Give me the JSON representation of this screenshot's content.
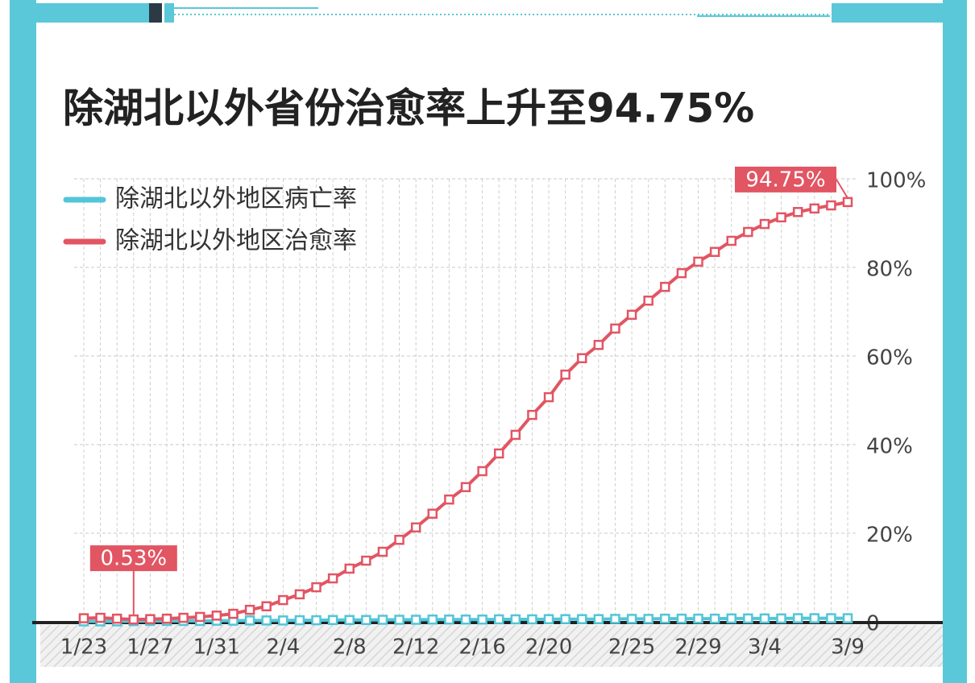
{
  "chart_data": {
    "type": "line",
    "title": "除湖北以外省份治愈率上升至94.75%",
    "categories": [
      "1/23",
      null,
      null,
      null,
      "1/27",
      null,
      null,
      null,
      "1/31",
      null,
      null,
      null,
      "2/4",
      null,
      null,
      null,
      "2/8",
      null,
      null,
      null,
      "2/12",
      null,
      null,
      null,
      "2/16",
      null,
      null,
      null,
      "2/20",
      null,
      null,
      null,
      null,
      "2/25",
      null,
      null,
      null,
      "2/29",
      null,
      null,
      null,
      "3/4",
      null,
      null,
      null,
      null,
      "3/9"
    ],
    "series": [
      {
        "name": "除湖北以外地区病亡率",
        "color": "#52c6d8",
        "values": [
          0.1,
          0.1,
          0.1,
          0.15,
          0.2,
          0.2,
          0.2,
          0.2,
          0.25,
          0.25,
          0.3,
          0.3,
          0.3,
          0.35,
          0.35,
          0.4,
          0.4,
          0.4,
          0.45,
          0.45,
          0.45,
          0.5,
          0.5,
          0.5,
          0.5,
          0.55,
          0.55,
          0.55,
          0.6,
          0.6,
          0.6,
          0.6,
          0.65,
          0.65,
          0.65,
          0.7,
          0.7,
          0.7,
          0.7,
          0.75,
          0.75,
          0.75,
          0.75,
          0.8,
          0.8,
          0.8,
          0.8
        ]
      },
      {
        "name": "除湖北以外地区治愈率",
        "color": "#e25563",
        "values": [
          0.8,
          0.9,
          0.7,
          0.53,
          0.6,
          0.7,
          0.9,
          1.1,
          1.4,
          1.8,
          2.7,
          3.5,
          4.9,
          6.2,
          7.8,
          9.8,
          12.0,
          13.8,
          15.8,
          18.5,
          21.3,
          24.4,
          27.6,
          30.4,
          34.0,
          38.0,
          42.2,
          46.7,
          50.7,
          55.8,
          59.5,
          62.5,
          66.2,
          69.3,
          72.5,
          75.6,
          78.7,
          81.3,
          83.5,
          86.0,
          88.0,
          89.8,
          91.3,
          92.5,
          93.3,
          94.0,
          94.75
        ],
        "value_labels": [
          null,
          null,
          null,
          "0.53%",
          null,
          null,
          null,
          null,
          null,
          null,
          null,
          null,
          null,
          null,
          null,
          null,
          null,
          null,
          null,
          null,
          null,
          null,
          null,
          null,
          null,
          null,
          null,
          null,
          null,
          null,
          null,
          null,
          null,
          null,
          null,
          null,
          null,
          null,
          null,
          null,
          null,
          null,
          null,
          null,
          null,
          null,
          "94.75%"
        ]
      }
    ],
    "ylim": [
      0,
      100
    ],
    "yticks": [
      0,
      {
        "value": 20,
        "label": "20%"
      },
      {
        "value": 40,
        "label": "40%"
      },
      {
        "value": 60,
        "label": "60%"
      },
      {
        "value": 80,
        "label": "80%"
      },
      {
        "value": 100,
        "label": "100%"
      }
    ],
    "grid": true,
    "legend": "upper left"
  }
}
